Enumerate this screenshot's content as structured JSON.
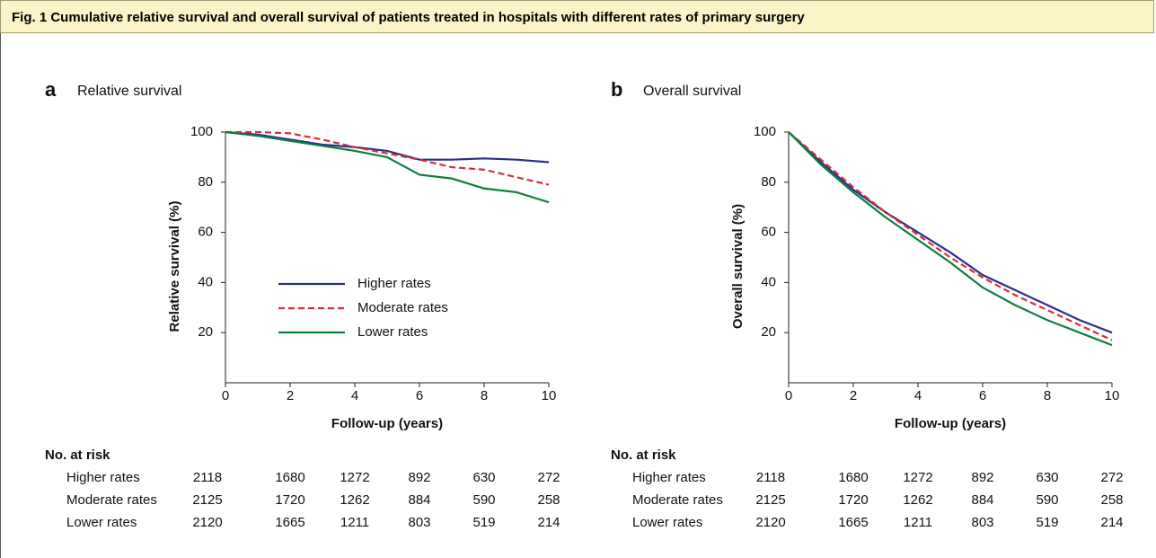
{
  "figure_title": "Fig. 1 Cumulative relative survival and overall survival of patients treated in hospitals with different rates of primary surgery",
  "chart_data": [
    {
      "type": "line",
      "panel": "a",
      "title": "Relative survival",
      "xlabel": "Follow-up (years)",
      "ylabel": "Relative survival (%)",
      "x": [
        0,
        1,
        2,
        3,
        4,
        5,
        6,
        7,
        8,
        9,
        10
      ],
      "xlim": [
        0,
        10
      ],
      "xticks": [
        0,
        2,
        4,
        6,
        8,
        10
      ],
      "ylim": [
        0,
        100
      ],
      "yticks": [
        20,
        40,
        60,
        80,
        100
      ],
      "legend": true,
      "series": [
        {
          "name": "Higher rates",
          "color": "#2b2f8a",
          "style": "solid",
          "values": [
            100,
            99,
            97,
            95,
            94,
            92.5,
            89,
            89,
            89.5,
            89,
            88
          ]
        },
        {
          "name": "Moderate rates",
          "color": "#d62d3a",
          "style": "dashed",
          "values": [
            100,
            100,
            99.5,
            97,
            94,
            91.5,
            89,
            86,
            85,
            82,
            79
          ]
        },
        {
          "name": "Lower rates",
          "color": "#0d7f3f",
          "style": "solid",
          "values": [
            100,
            98.5,
            96.5,
            94.5,
            92.5,
            90,
            83,
            81.5,
            77.5,
            76,
            72
          ]
        }
      ],
      "risk_table": {
        "title": "No. at risk",
        "rows": [
          {
            "name": "Higher rates",
            "values": [
              2118,
              1680,
              1272,
              892,
              630,
              272
            ]
          },
          {
            "name": "Moderate rates",
            "values": [
              2125,
              1720,
              1262,
              884,
              590,
              258
            ]
          },
          {
            "name": "Lower rates",
            "values": [
              2120,
              1665,
              1211,
              803,
              519,
              214
            ]
          }
        ]
      }
    },
    {
      "type": "line",
      "panel": "b",
      "title": "Overall survival",
      "xlabel": "Follow-up (years)",
      "ylabel": "Overall survival (%)",
      "x": [
        0,
        1,
        2,
        3,
        4,
        5,
        6,
        7,
        8,
        9,
        10
      ],
      "xlim": [
        0,
        10
      ],
      "xticks": [
        0,
        2,
        4,
        6,
        8,
        10
      ],
      "ylim": [
        0,
        100
      ],
      "yticks": [
        20,
        40,
        60,
        80,
        100
      ],
      "legend": false,
      "series": [
        {
          "name": "Higher rates",
          "color": "#2b2f8a",
          "style": "solid",
          "values": [
            100,
            88,
            77,
            68,
            60,
            52,
            43,
            37,
            31,
            25,
            20
          ]
        },
        {
          "name": "Moderate rates",
          "color": "#d62d3a",
          "style": "dashed",
          "values": [
            100,
            89,
            78,
            68,
            59,
            50,
            42,
            35,
            29,
            23,
            17
          ]
        },
        {
          "name": "Lower rates",
          "color": "#0d7f3f",
          "style": "solid",
          "values": [
            100,
            87,
            76,
            66,
            57,
            48,
            38,
            31,
            25,
            20,
            15
          ]
        }
      ],
      "risk_table": {
        "title": "No. at risk",
        "rows": [
          {
            "name": "Higher rates",
            "values": [
              2118,
              1680,
              1272,
              892,
              630,
              272
            ]
          },
          {
            "name": "Moderate rates",
            "values": [
              2125,
              1720,
              1262,
              884,
              590,
              258
            ]
          },
          {
            "name": "Lower rates",
            "values": [
              2120,
              1665,
              1211,
              803,
              519,
              214
            ]
          }
        ]
      }
    }
  ]
}
